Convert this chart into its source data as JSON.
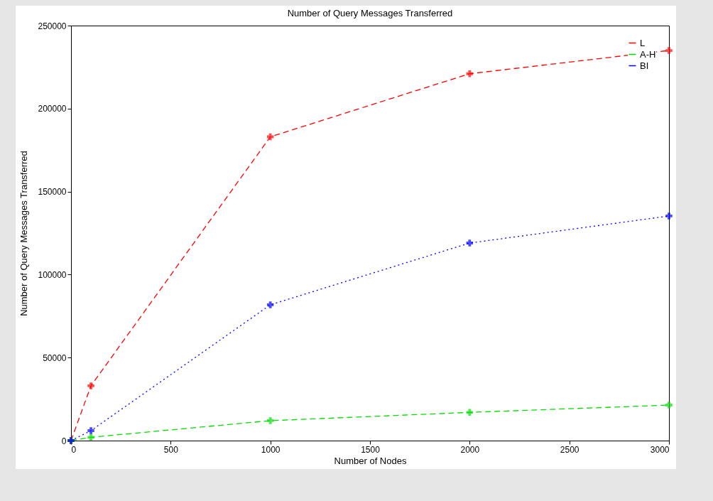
{
  "chart_data": {
    "type": "line",
    "title": "Number of Query Messages Transferred",
    "xlabel": "Number of Nodes",
    "ylabel": "Number of Query Messages Transferred",
    "x": [
      0,
      100,
      1000,
      2000,
      3000
    ],
    "series": [
      {
        "name": "L",
        "color": "#ff0000",
        "values": [
          0,
          33000,
          183000,
          221000,
          235000
        ],
        "marker": "cross",
        "line_style": "dashed"
      },
      {
        "name": "A-H",
        "color": "#00dd00",
        "values": [
          0,
          2000,
          12000,
          17000,
          21400
        ],
        "marker": "cross",
        "line_style": "dashed"
      },
      {
        "name": "BI",
        "color": "#0000ff",
        "values": [
          0,
          6000,
          81800,
          119000,
          135300
        ],
        "marker": "cross",
        "line_style": "dotted"
      }
    ],
    "xlim": [
      0,
      3000
    ],
    "xticks": [
      0,
      500,
      1000,
      1500,
      2000,
      2500,
      3000
    ],
    "ylim": [
      0,
      250000
    ],
    "yticks": [
      0,
      50000,
      100000,
      150000,
      200000,
      250000
    ],
    "grid": false,
    "legend": "top right"
  }
}
